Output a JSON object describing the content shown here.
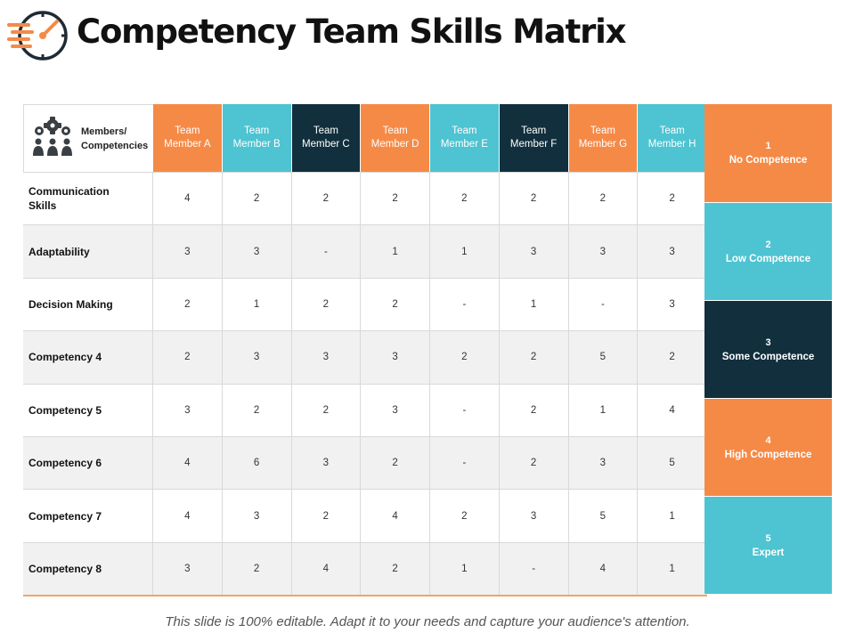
{
  "title": "Competency Team Skills Matrix",
  "corner_label_line1": "Members/",
  "corner_label_line2": "Competencies",
  "members": [
    {
      "line1": "Team",
      "line2": "Member A",
      "color": "#f58a47"
    },
    {
      "line1": "Team",
      "line2": "Member B",
      "color": "#4ec3d1"
    },
    {
      "line1": "Team",
      "line2": "Member C",
      "color": "#112f3d"
    },
    {
      "line1": "Team",
      "line2": "Member D",
      "color": "#f58a47"
    },
    {
      "line1": "Team",
      "line2": "Member E",
      "color": "#4ec3d1"
    },
    {
      "line1": "Team",
      "line2": "Member F",
      "color": "#112f3d"
    },
    {
      "line1": "Team",
      "line2": "Member G",
      "color": "#f58a47"
    },
    {
      "line1": "Team",
      "line2": "Member H",
      "color": "#4ec3d1"
    }
  ],
  "rows": [
    {
      "label": "Communication Skills",
      "values": [
        "4",
        "2",
        "2",
        "2",
        "2",
        "2",
        "2",
        "2"
      ]
    },
    {
      "label": "Adaptability",
      "values": [
        "3",
        "3",
        "-",
        "1",
        "1",
        "3",
        "3",
        "3"
      ]
    },
    {
      "label": "Decision  Making",
      "values": [
        "2",
        "1",
        "2",
        "2",
        "-",
        "1",
        "-",
        "3"
      ]
    },
    {
      "label": "Competency  4",
      "values": [
        "2",
        "3",
        "3",
        "3",
        "2",
        "2",
        "5",
        "2"
      ]
    },
    {
      "label": "Competency  5",
      "values": [
        "3",
        "2",
        "2",
        "3",
        "-",
        "2",
        "1",
        "4"
      ]
    },
    {
      "label": "Competency  6",
      "values": [
        "4",
        "6",
        "3",
        "2",
        "-",
        "2",
        "3",
        "5"
      ]
    },
    {
      "label": "Competency  7",
      "values": [
        "4",
        "3",
        "2",
        "4",
        "2",
        "3",
        "5",
        "1"
      ]
    },
    {
      "label": "Competency  8",
      "values": [
        "3",
        "2",
        "4",
        "2",
        "1",
        "-",
        "4",
        "1"
      ]
    }
  ],
  "legend": [
    {
      "num": "1",
      "label": "No Competence",
      "color": "#f58a47"
    },
    {
      "num": "2",
      "label": "Low Competence",
      "color": "#4ec3d1"
    },
    {
      "num": "3",
      "label": "Some Competence",
      "color": "#112f3d"
    },
    {
      "num": "4",
      "label": "High  Competence",
      "color": "#f58a47"
    },
    {
      "num": "5",
      "label": "Expert",
      "color": "#4ec3d1"
    }
  ],
  "footer": "This slide is 100% editable. Adapt it to your needs and capture your audience's attention.",
  "icons": {
    "logo": "speed-gauge-icon",
    "corner": "team-gears-icon"
  }
}
